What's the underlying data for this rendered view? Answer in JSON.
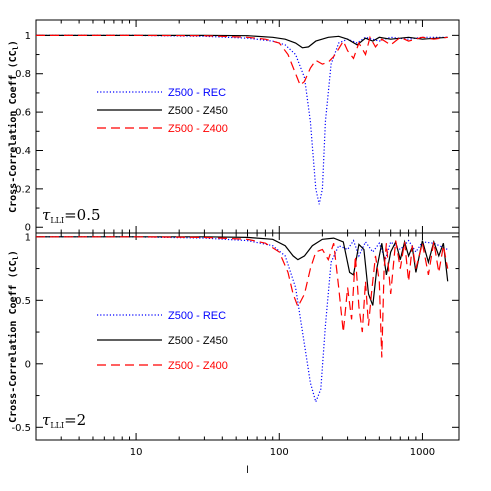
{
  "chart_data": [
    {
      "type": "line",
      "xlabel": "l",
      "ylabel": "Cross-Correlation Coeff (CC_l)",
      "xscale": "log",
      "xlim": [
        2,
        1800
      ],
      "ylim": [
        -0.03,
        1.08
      ],
      "yticks": [
        "0",
        "0.2",
        "0.4",
        "0.6",
        "0.8",
        "1"
      ],
      "annotation": "τ_LLI=0.5",
      "legend_position": "left-middle",
      "series": [
        {
          "name": "Z500 - REC",
          "color": "#0000ff",
          "style": "dotted",
          "x": [
            2,
            10,
            30,
            60,
            90,
            110,
            130,
            150,
            165,
            180,
            190,
            200,
            210,
            230,
            260,
            300,
            350,
            400,
            500,
            600,
            800,
            1000,
            1500
          ],
          "y": [
            1.0,
            1.0,
            0.995,
            0.985,
            0.97,
            0.95,
            0.9,
            0.78,
            0.55,
            0.2,
            0.12,
            0.2,
            0.55,
            0.85,
            0.96,
            0.98,
            0.96,
            0.99,
            0.97,
            0.99,
            0.98,
            0.99,
            0.99
          ]
        },
        {
          "name": "Z500 - Z450",
          "color": "#000000",
          "style": "solid",
          "x": [
            2,
            10,
            30,
            60,
            90,
            110,
            130,
            145,
            160,
            180,
            220,
            260,
            300,
            350,
            400,
            450,
            500,
            600,
            800,
            1000,
            1500
          ],
          "y": [
            1.0,
            1.0,
            1.0,
            0.998,
            0.99,
            0.98,
            0.96,
            0.935,
            0.94,
            0.97,
            0.99,
            0.995,
            0.98,
            0.95,
            0.985,
            0.97,
            0.99,
            0.98,
            0.99,
            0.98,
            0.99
          ]
        },
        {
          "name": "Z500 - Z400",
          "color": "#ff0000",
          "style": "dashed",
          "x": [
            2,
            10,
            30,
            60,
            80,
            100,
            115,
            130,
            140,
            150,
            165,
            180,
            200,
            220,
            240,
            260,
            280,
            300,
            330,
            360,
            400,
            430,
            470,
            520,
            600,
            700,
            800,
            1000,
            1200,
            1500
          ],
          "y": [
            1.0,
            1.0,
            0.998,
            0.99,
            0.98,
            0.96,
            0.9,
            0.8,
            0.74,
            0.76,
            0.83,
            0.87,
            0.85,
            0.86,
            0.89,
            0.93,
            0.97,
            0.92,
            0.88,
            0.96,
            0.9,
            0.99,
            0.94,
            0.98,
            0.95,
            0.99,
            0.97,
            0.99,
            0.98,
            0.99
          ]
        }
      ]
    },
    {
      "type": "line",
      "xlabel": "l",
      "ylabel": "Cross-Correlation Coeff (CC_l)",
      "xscale": "log",
      "xlim": [
        2,
        1800
      ],
      "ylim": [
        -0.6,
        1.03
      ],
      "yticks": [
        "-0.5",
        "0",
        "0.5",
        "1"
      ],
      "xticks": [
        "10",
        "100",
        "1000"
      ],
      "annotation": "τ_LLI=2",
      "legend_position": "left-middle",
      "series": [
        {
          "name": "Z500 - REC",
          "color": "#0000ff",
          "style": "dotted",
          "x": [
            2,
            10,
            30,
            60,
            90,
            110,
            130,
            150,
            165,
            180,
            195,
            210,
            230,
            260,
            300,
            330,
            360,
            400,
            450,
            500,
            550,
            600,
            700,
            800,
            900,
            1000,
            1200,
            1500
          ],
          "y": [
            1.0,
            1.0,
            0.99,
            0.97,
            0.93,
            0.85,
            0.6,
            0.15,
            -0.15,
            -0.3,
            -0.2,
            0.3,
            0.8,
            0.93,
            0.9,
            0.97,
            0.85,
            0.96,
            0.88,
            0.95,
            0.82,
            0.96,
            0.9,
            0.97,
            0.88,
            0.96,
            0.95,
            0.9
          ]
        },
        {
          "name": "Z500 - Z450",
          "color": "#000000",
          "style": "solid",
          "x": [
            2,
            10,
            30,
            60,
            90,
            110,
            125,
            135,
            150,
            170,
            200,
            240,
            280,
            310,
            330,
            360,
            390,
            420,
            450,
            480,
            520,
            560,
            600,
            650,
            700,
            750,
            800,
            850,
            900,
            1000,
            1100,
            1200,
            1300,
            1400,
            1500
          ],
          "y": [
            1.0,
            1.0,
            1.0,
            0.995,
            0.98,
            0.93,
            0.85,
            0.82,
            0.85,
            0.93,
            0.98,
            0.99,
            0.96,
            0.72,
            0.7,
            0.94,
            0.9,
            0.55,
            0.46,
            0.75,
            0.95,
            0.7,
            0.88,
            0.96,
            0.82,
            0.96,
            0.85,
            0.92,
            0.72,
            0.97,
            0.8,
            0.96,
            0.85,
            0.95,
            0.65
          ]
        },
        {
          "name": "Z500 - Z400",
          "color": "#ff0000",
          "style": "dashed",
          "x": [
            2,
            10,
            30,
            60,
            80,
            100,
            115,
            125,
            135,
            150,
            165,
            180,
            200,
            220,
            240,
            260,
            280,
            300,
            320,
            340,
            360,
            380,
            400,
            420,
            440,
            470,
            500,
            520,
            540,
            560,
            600,
            650,
            700,
            750,
            800,
            850,
            900,
            1000,
            1100,
            1200,
            1300,
            1400,
            1500
          ],
          "y": [
            1.0,
            1.0,
            0.995,
            0.98,
            0.95,
            0.88,
            0.72,
            0.55,
            0.45,
            0.55,
            0.75,
            0.88,
            0.9,
            0.82,
            0.95,
            0.6,
            0.25,
            0.6,
            0.35,
            0.85,
            0.45,
            0.25,
            0.65,
            0.3,
            0.55,
            0.85,
            0.65,
            0.05,
            0.75,
            0.95,
            0.55,
            0.97,
            0.75,
            0.96,
            0.65,
            0.93,
            0.75,
            0.95,
            0.7,
            0.96,
            0.72,
            0.93,
            0.75
          ]
        }
      ]
    }
  ]
}
